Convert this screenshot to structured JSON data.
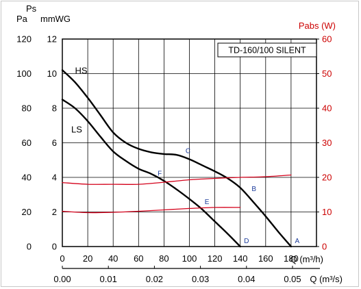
{
  "chart_data": {
    "type": "line",
    "model": "TD-160/100 SILENT",
    "left_axis": {
      "unit_outer": "Pa",
      "unit_inner_top": "Ps",
      "unit_inner": "mmWG",
      "pa_ticks": [
        "0",
        "20",
        "40",
        "60",
        "80",
        "100",
        "120"
      ],
      "mmwg_ticks": [
        "0",
        "2",
        "4",
        "6",
        "8",
        "10",
        "12"
      ],
      "ylim_mmwg": [
        0,
        12
      ]
    },
    "right_axis": {
      "label": "Pabs (W)",
      "ticks": [
        "0",
        "10",
        "20",
        "30",
        "40",
        "50",
        "60"
      ],
      "ylim": [
        0,
        60
      ]
    },
    "x_axis_top": {
      "label": "Q (m³/h)",
      "ticks": [
        "0",
        "20",
        "40",
        "60",
        "80",
        "100",
        "120",
        "140",
        "160",
        "180"
      ],
      "xlim": [
        0,
        200
      ]
    },
    "x_axis_bottom": {
      "label": "Q (m³/s)",
      "ticks": [
        "0.00",
        "0.01",
        "0.02",
        "0.03",
        "0.04",
        "0.05"
      ]
    },
    "grid": true,
    "series": [
      {
        "name": "HS",
        "axis": "left_mmwg",
        "x": [
          0,
          10,
          20,
          30,
          40,
          50,
          60,
          70,
          80,
          90,
          100,
          110,
          120,
          130,
          140,
          150,
          160,
          170,
          180
        ],
        "y": [
          10.2,
          9.5,
          8.6,
          7.6,
          6.6,
          6.0,
          5.65,
          5.45,
          5.35,
          5.3,
          5.05,
          4.7,
          4.35,
          3.95,
          3.4,
          2.6,
          1.75,
          0.85,
          0
        ]
      },
      {
        "name": "LS",
        "axis": "left_mmwg",
        "x": [
          0,
          10,
          20,
          30,
          40,
          50,
          60,
          70,
          80,
          90,
          100,
          110,
          120,
          130,
          140
        ],
        "y": [
          8.5,
          8.0,
          7.25,
          6.35,
          5.5,
          4.95,
          4.5,
          4.2,
          3.8,
          3.3,
          2.75,
          2.15,
          1.45,
          0.75,
          0
        ]
      },
      {
        "name": "HS power",
        "axis": "right",
        "x": [
          0,
          20,
          40,
          60,
          80,
          100,
          120,
          140,
          160,
          180
        ],
        "y": [
          18.5,
          18.0,
          18.0,
          18.0,
          18.6,
          19.3,
          19.7,
          20.0,
          20.2,
          20.7
        ]
      },
      {
        "name": "LS power",
        "axis": "right",
        "x": [
          0,
          20,
          40,
          60,
          80,
          100,
          120,
          140
        ],
        "y": [
          10.2,
          9.8,
          9.9,
          10.2,
          10.6,
          11.0,
          11.3,
          11.3
        ]
      }
    ],
    "curve_labels": [
      {
        "text": "HS",
        "x": 10,
        "y": 10.0
      },
      {
        "text": "LS",
        "x": 7,
        "y": 6.6
      }
    ],
    "point_labels": [
      {
        "text": "A",
        "x": 183,
        "y": 0.2
      },
      {
        "text": "B",
        "x": 149,
        "y": 3.2
      },
      {
        "text": "C",
        "x": 97,
        "y": 5.4
      },
      {
        "text": "D",
        "x": 143,
        "y": 0.2
      },
      {
        "text": "E",
        "x": 112,
        "y": 2.45
      },
      {
        "text": "F",
        "x": 75,
        "y": 4.1
      }
    ]
  }
}
